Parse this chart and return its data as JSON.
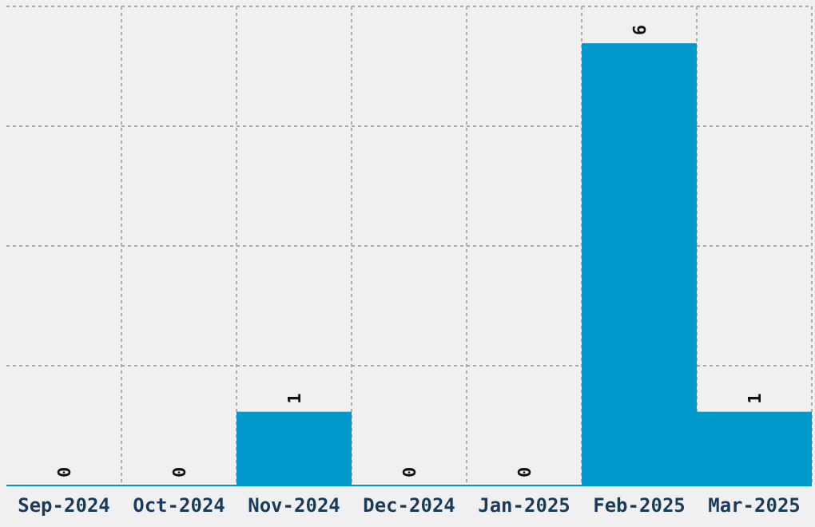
{
  "chart_data": {
    "type": "bar",
    "categories": [
      "Sep-2024",
      "Oct-2024",
      "Nov-2024",
      "Dec-2024",
      "Jan-2025",
      "Feb-2025",
      "Mar-2025"
    ],
    "values": [
      0,
      0,
      1,
      0,
      0,
      6,
      1
    ],
    "color": "#0099cc",
    "data_labels": true,
    "grid": true,
    "tick_labels": "x",
    "ylim": [
      0,
      6.5
    ],
    "yticks": [
      {
        "value": 0,
        "label": null
      },
      {
        "value": 1.625,
        "label": null
      },
      {
        "value": 3.25,
        "label": null
      },
      {
        "value": 4.875,
        "label": null
      },
      {
        "value": 6.5,
        "label": null
      }
    ]
  }
}
